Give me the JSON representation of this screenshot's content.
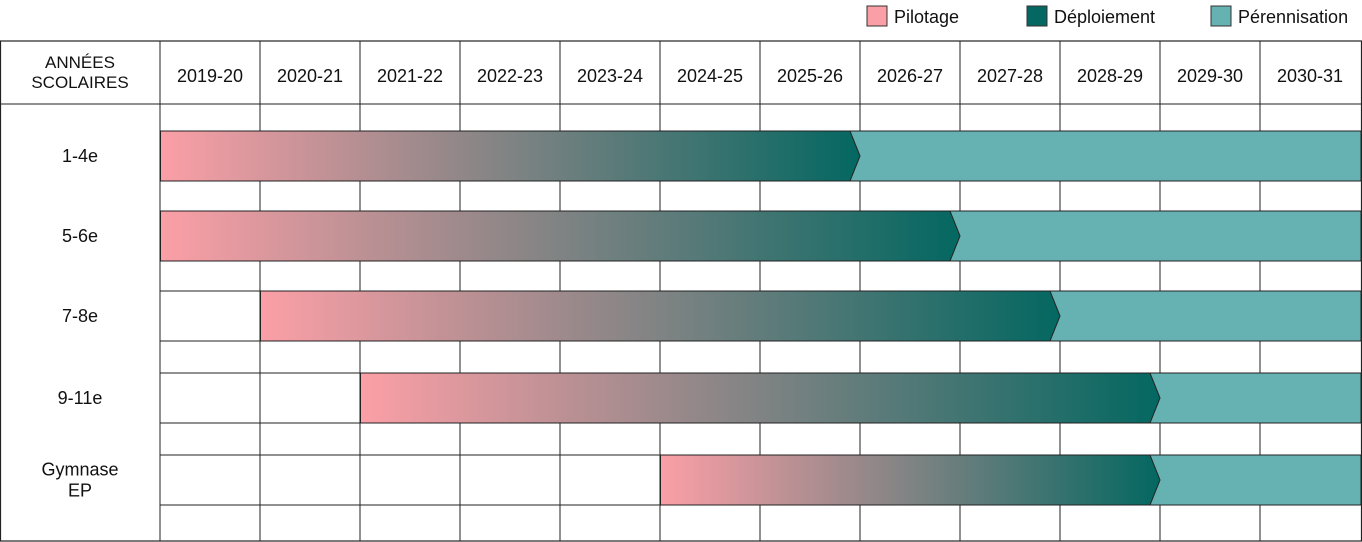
{
  "chart_data": {
    "type": "gantt",
    "header_label_lines": [
      "ANNÉES",
      "SCOLAIRES"
    ],
    "years": [
      "2019-20",
      "2020-21",
      "2021-22",
      "2022-23",
      "2023-24",
      "2024-25",
      "2025-26",
      "2026-27",
      "2027-28",
      "2028-29",
      "2029-30",
      "2030-31"
    ],
    "legend": [
      {
        "label": "Pilotage",
        "color": "#fb9fa6"
      },
      {
        "label": "Déploiement",
        "color": "#046761"
      },
      {
        "label": "Pérennisation",
        "color": "#66b2b2"
      }
    ],
    "rows": [
      {
        "label_lines": [
          "1-4e"
        ],
        "start_year": "2019-20",
        "transition_year": "2026-27"
      },
      {
        "label_lines": [
          "5-6e"
        ],
        "start_year": "2019-20",
        "transition_year": "2027-28"
      },
      {
        "label_lines": [
          "7-8e"
        ],
        "start_year": "2020-21",
        "transition_year": "2028-29"
      },
      {
        "label_lines": [
          "9-11e"
        ],
        "start_year": "2021-22",
        "transition_year": "2029-30"
      },
      {
        "label_lines": [
          "Gymnase",
          "EP"
        ],
        "start_year": "2024-25",
        "transition_year": "2029-30"
      }
    ]
  }
}
